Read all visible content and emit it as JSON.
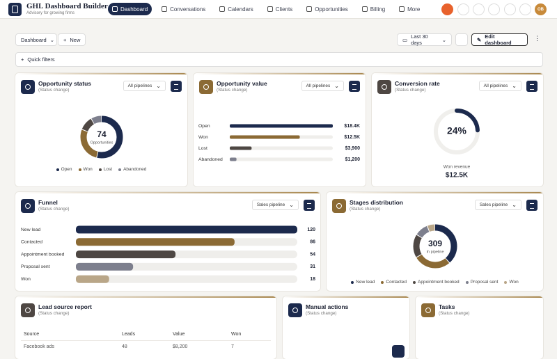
{
  "header": {
    "title": "GHL Dashboard Builder",
    "subtitle": "Advisory for growing firms",
    "nav": [
      "Dashboard",
      "Conversations",
      "Calendars",
      "Clients",
      "Opportunities",
      "Billing",
      "More"
    ],
    "avatar": "OB"
  },
  "toolbar": {
    "dashboard": "Dashboard",
    "new": "New",
    "range": "Last 30 days",
    "edit": "Edit dashboard",
    "quick_filters": "Quick filters"
  },
  "cards": [
    {
      "title": "Opportunity status",
      "subtitle": "(Status change)",
      "filter": "All pipelines",
      "chart": {
        "type": "donut",
        "center_value": 74,
        "center_label": "Opportunities",
        "categories": [
          "Open",
          "Won",
          "Lost",
          "Abandoned"
        ],
        "values": [
          40,
          20,
          8,
          6
        ],
        "colors": [
          "#1c2a4d",
          "#8b6a34",
          "#4e4743",
          "#7d7f8d"
        ]
      }
    },
    {
      "title": "Opportunity value",
      "subtitle": "(Status change)",
      "filter": "All pipelines",
      "chart": {
        "type": "hbar",
        "categories": [
          "Open",
          "Won",
          "Lost",
          "Abandoned"
        ],
        "values": [
          18400,
          12500,
          3900,
          1200
        ],
        "value_labels": [
          "$18.4K",
          "$12.5K",
          "$3,900",
          "$1,200"
        ],
        "colors": [
          "#1c2a4d",
          "#8b6a34",
          "#4e4743",
          "#7d7f8d"
        ]
      }
    },
    {
      "title": "Conversion rate",
      "subtitle": "(Status change)",
      "filter": "All pipelines",
      "chart": {
        "type": "gauge",
        "value": 24,
        "value_label": "24%",
        "color": "#1c2a4d",
        "caption": "Won revenue",
        "caption_value": "$12.5K"
      }
    },
    {
      "title": "Funnel",
      "subtitle": "(Status change)",
      "filter": "Sales pipeline",
      "chart": {
        "type": "hbar",
        "categories": [
          "New lead",
          "Contacted",
          "Appointment booked",
          "Proposal sent",
          "Won"
        ],
        "values": [
          120,
          86,
          54,
          31,
          18
        ],
        "colors": [
          "#1c2a4d",
          "#8b6a34",
          "#4e4743",
          "#7d7f8d",
          "#b9a688"
        ]
      }
    },
    {
      "title": "Stages distribution",
      "subtitle": "(Status change)",
      "filter": "Sales pipeline",
      "chart": {
        "type": "donut",
        "center_value": 309,
        "center_label": "In pipeline",
        "categories": [
          "New lead",
          "Contacted",
          "Appointment booked",
          "Proposal sent",
          "Won"
        ],
        "values": [
          120,
          86,
          54,
          31,
          18
        ],
        "colors": [
          "#1c2a4d",
          "#8b6a34",
          "#4e4743",
          "#7d7f8d",
          "#b9a688"
        ]
      }
    },
    {
      "title": "Lead source report",
      "subtitle": "(Status change)",
      "table": {
        "columns": [
          "Source",
          "Leads",
          "Value",
          "Won"
        ],
        "rows": [
          [
            "Facebook ads",
            "48",
            "$8,200",
            "7"
          ]
        ]
      }
    },
    {
      "title": "Manual actions",
      "subtitle": "(Status change)"
    },
    {
      "title": "Tasks",
      "subtitle": "(Status change)"
    }
  ]
}
